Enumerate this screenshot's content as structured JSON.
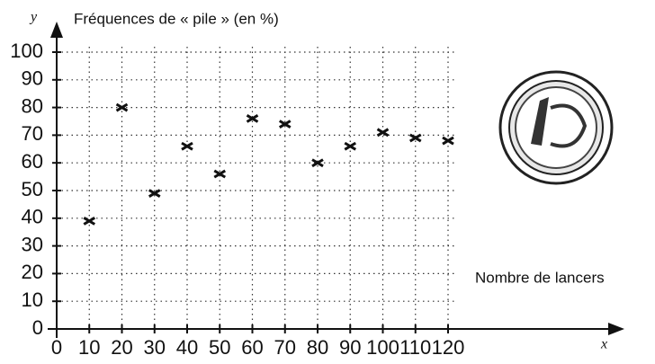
{
  "chart_data": {
    "type": "scatter",
    "title": "Fréquences de « pile » (en %)",
    "x_axis_title": "Nombre de lancers",
    "x_label": "x",
    "y_label": "y",
    "x": [
      10,
      20,
      30,
      40,
      50,
      60,
      70,
      80,
      90,
      100,
      110,
      120
    ],
    "values": [
      39,
      80,
      49,
      66,
      56,
      76,
      74,
      60,
      66,
      71,
      69,
      68
    ],
    "color": "#111111",
    "xlim": [
      0,
      120
    ],
    "xticks": [
      0,
      10,
      20,
      30,
      40,
      50,
      60,
      70,
      80,
      90,
      100,
      110,
      120
    ],
    "ylim": [
      0,
      100
    ],
    "yticks": [
      0,
      10,
      20,
      30,
      40,
      50,
      60,
      70,
      80,
      90,
      100
    ],
    "grid": true
  }
}
